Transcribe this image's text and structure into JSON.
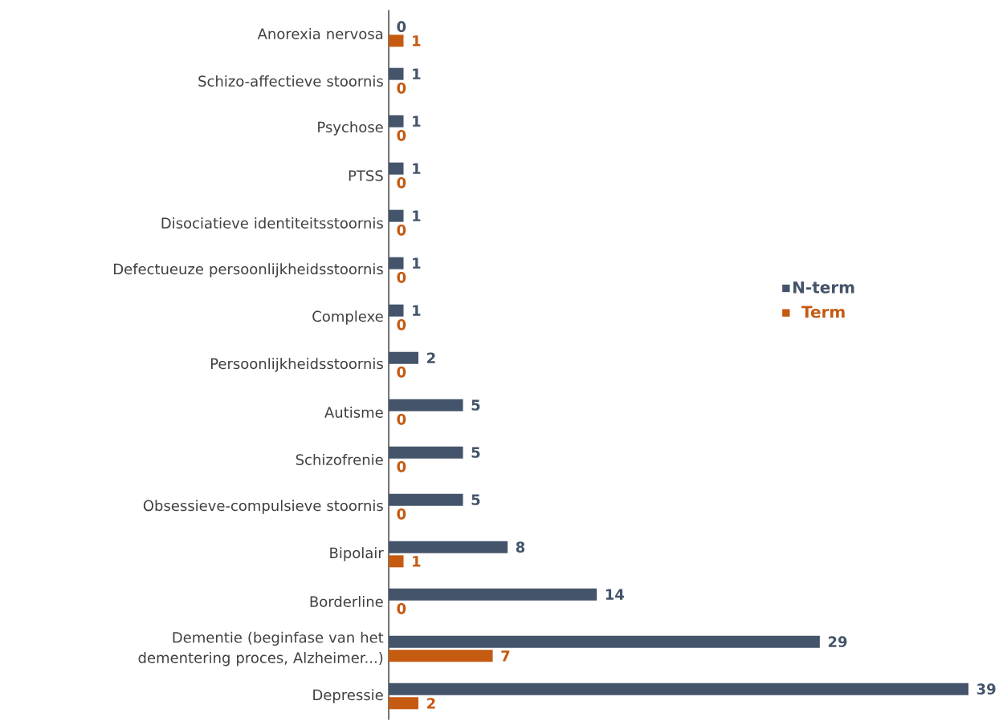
{
  "chart_data": {
    "type": "bar",
    "orientation": "horizontal",
    "data_labels": true,
    "legend": "right",
    "categories": [
      "Anorexia nervosa",
      "Schizo-affectieve stoornis",
      "Psychose",
      "PTSS",
      "Disociatieve identiteitsstoornis",
      "Defectueuze persoonlijkheidsstoornis",
      "Complexe",
      "Persoonlijkheidsstoornis",
      "Autisme",
      "Schizofrenie",
      "Obsessieve-compulsieve stoornis",
      "Bipolair",
      "Borderline",
      "Dementie (beginfase van het dementering proces, Alzheimer...)",
      "Depressie"
    ],
    "series": [
      {
        "name": "N-term",
        "color": "#44546a",
        "values": [
          0,
          1,
          1,
          1,
          1,
          1,
          1,
          2,
          5,
          5,
          5,
          8,
          14,
          29,
          39
        ]
      },
      {
        "name": "Term",
        "color": "#c55a11",
        "values": [
          1,
          0,
          0,
          0,
          0,
          0,
          0,
          0,
          0,
          0,
          0,
          1,
          0,
          7,
          2
        ]
      }
    ]
  }
}
